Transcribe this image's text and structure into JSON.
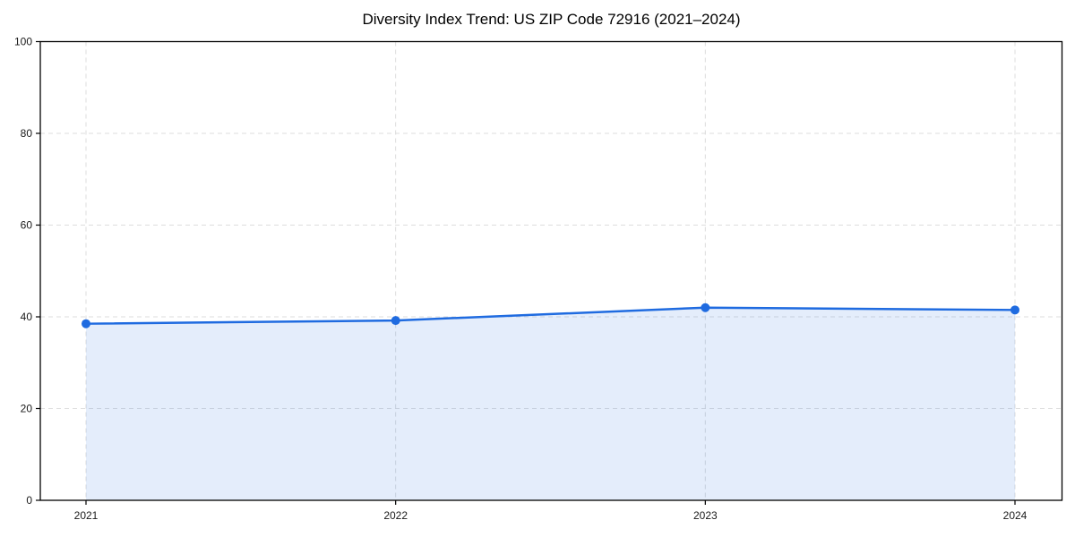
{
  "chart_data": {
    "type": "area",
    "title": "Diversity Index Trend: US ZIP Code 72916 (2021–2024)",
    "x": [
      "2021",
      "2022",
      "2023",
      "2024"
    ],
    "series": [
      {
        "name": "Diversity Index",
        "values": [
          38.5,
          39.2,
          42.0,
          41.5
        ]
      }
    ],
    "xlabel": "",
    "ylabel": "",
    "ylim": [
      0,
      100
    ],
    "yticks": [
      0,
      20,
      40,
      60,
      80,
      100
    ],
    "grid": "dashed-both-axes",
    "legend": "none",
    "colors": {
      "line": "#1f6be0",
      "marker": "#1f6be0",
      "fill": "rgba(31, 107, 224, 0.12)",
      "grid": "#dddddd",
      "spine": "#000000",
      "text": "#1a1a1a",
      "background": "#ffffff"
    }
  }
}
